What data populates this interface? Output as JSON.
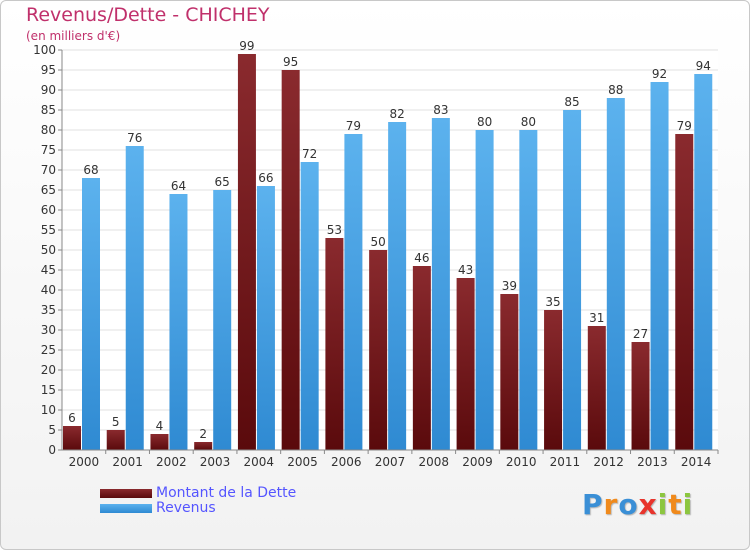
{
  "header": {
    "title": "Revenus/Dette - CHICHEY",
    "subtitle": "(en milliers d'€)"
  },
  "chart_data": {
    "type": "bar",
    "title": "Revenus/Dette - CHICHEY",
    "ylabel": "(en milliers d'€)",
    "xlabel": "",
    "categories": [
      "2000",
      "2001",
      "2002",
      "2003",
      "2004",
      "2005",
      "2006",
      "2007",
      "2008",
      "2009",
      "2010",
      "2011",
      "2012",
      "2013",
      "2014"
    ],
    "series": [
      {
        "name": "Montant de la Dette",
        "color": "#7a1418",
        "values": [
          6,
          5,
          4,
          2,
          99,
          95,
          53,
          50,
          46,
          43,
          39,
          35,
          31,
          27,
          79
        ]
      },
      {
        "name": "Revenus",
        "color": "#4aa3e6",
        "values": [
          68,
          76,
          64,
          65,
          66,
          72,
          79,
          82,
          83,
          80,
          80,
          85,
          88,
          92,
          94
        ]
      }
    ],
    "ylim": [
      0,
      100
    ],
    "yticks": [
      0,
      5,
      10,
      15,
      20,
      25,
      30,
      35,
      40,
      45,
      50,
      55,
      60,
      65,
      70,
      75,
      80,
      85,
      90,
      95,
      100
    ],
    "grid": true,
    "legend_position": "bottom-left",
    "data_labels": true
  },
  "legend": {
    "items": [
      {
        "label": "Montant de la Dette",
        "color": "#7a1418"
      },
      {
        "label": "Revenus",
        "color": "#4aa3e6"
      }
    ]
  },
  "logo": {
    "letters": [
      {
        "ch": "P",
        "color": "#3a8fd6"
      },
      {
        "ch": "r",
        "color": "#f08a1c"
      },
      {
        "ch": "o",
        "color": "#3a8fd6"
      },
      {
        "ch": "x",
        "color": "#e8342c"
      },
      {
        "ch": "i",
        "color": "#8cc63f"
      },
      {
        "ch": "t",
        "color": "#f08a1c"
      },
      {
        "ch": "i",
        "color": "#8cc63f"
      }
    ]
  }
}
